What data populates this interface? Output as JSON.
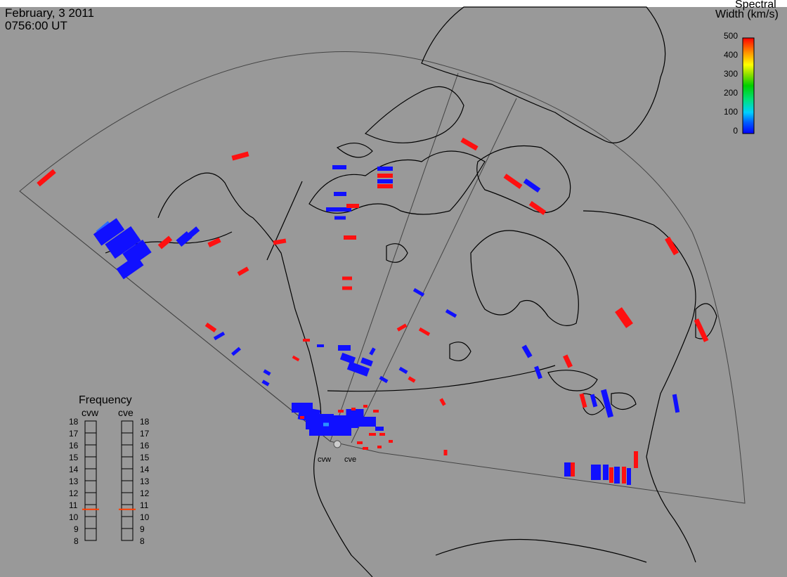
{
  "header": {
    "date": "February, 3 2011",
    "time": "0756:00 UT"
  },
  "colorbar": {
    "title_line1": "Spectral",
    "title_line2": "Width (km/s)",
    "ticks": [
      "500",
      "400",
      "300",
      "200",
      "100",
      "0"
    ],
    "min": 0,
    "max": 500
  },
  "frequency_panel": {
    "title": "Frequency",
    "radars": [
      "cvw",
      "cve"
    ],
    "ticks": [
      "18",
      "17",
      "16",
      "15",
      "14",
      "13",
      "12",
      "11",
      "10",
      "9",
      "8"
    ],
    "cvw_mhz": 10.6,
    "cve_mhz": 10.6
  },
  "radar_labels": [
    "cvw",
    "cve"
  ],
  "colors": {
    "background": "#999999",
    "coast": "#000000",
    "fov": "#333333",
    "low_width": "#1010ff",
    "high_width": "#ff1010",
    "freq_marker": "#ff3c00"
  }
}
